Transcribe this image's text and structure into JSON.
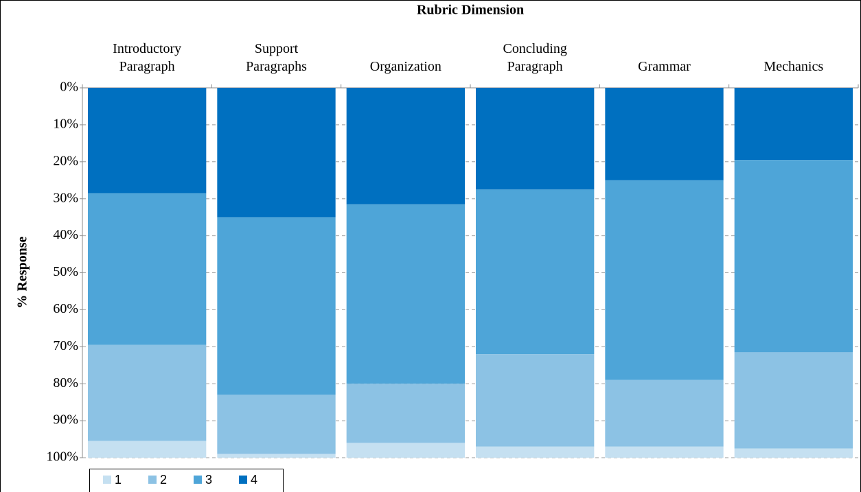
{
  "chart_data": {
    "type": "bar",
    "stacked": true,
    "inverted_y": true,
    "x_axis_label": "Rubric Dimension",
    "y_axis_label": "% Response",
    "categories": [
      "Introductory Paragraph",
      "Support Paragraphs",
      "Organization",
      "Concluding Paragraph",
      "Grammar",
      "Mechanics"
    ],
    "series": [
      {
        "name": "4",
        "color": "#0070c0",
        "values": [
          28.5,
          35,
          31.5,
          27.5,
          25,
          19.5
        ]
      },
      {
        "name": "3",
        "color": "#4ea5d8",
        "values": [
          41,
          48,
          48.5,
          44.5,
          54,
          52
        ]
      },
      {
        "name": "2",
        "color": "#8cc2e4",
        "values": [
          26,
          16,
          16,
          25,
          18,
          26
        ]
      },
      {
        "name": "1",
        "color": "#c5e0f1",
        "values": [
          4.5,
          1,
          4,
          3,
          3,
          2.5
        ]
      }
    ],
    "legend_order": [
      "1",
      "2",
      "3",
      "4"
    ],
    "legend": "bottom-left",
    "ylim": [
      0,
      100
    ],
    "yticks": [
      {
        "value": 0,
        "label": "0%"
      },
      {
        "value": 10,
        "label": "10%"
      },
      {
        "value": 20,
        "label": "20%"
      },
      {
        "value": 30,
        "label": "30%"
      },
      {
        "value": 40,
        "label": "40%"
      },
      {
        "value": 50,
        "label": "50%"
      },
      {
        "value": 60,
        "label": "60%"
      },
      {
        "value": 70,
        "label": "70%"
      },
      {
        "value": 80,
        "label": "80%"
      },
      {
        "value": 90,
        "label": "90%"
      },
      {
        "value": 100,
        "label": "100%"
      }
    ],
    "grid": true
  }
}
